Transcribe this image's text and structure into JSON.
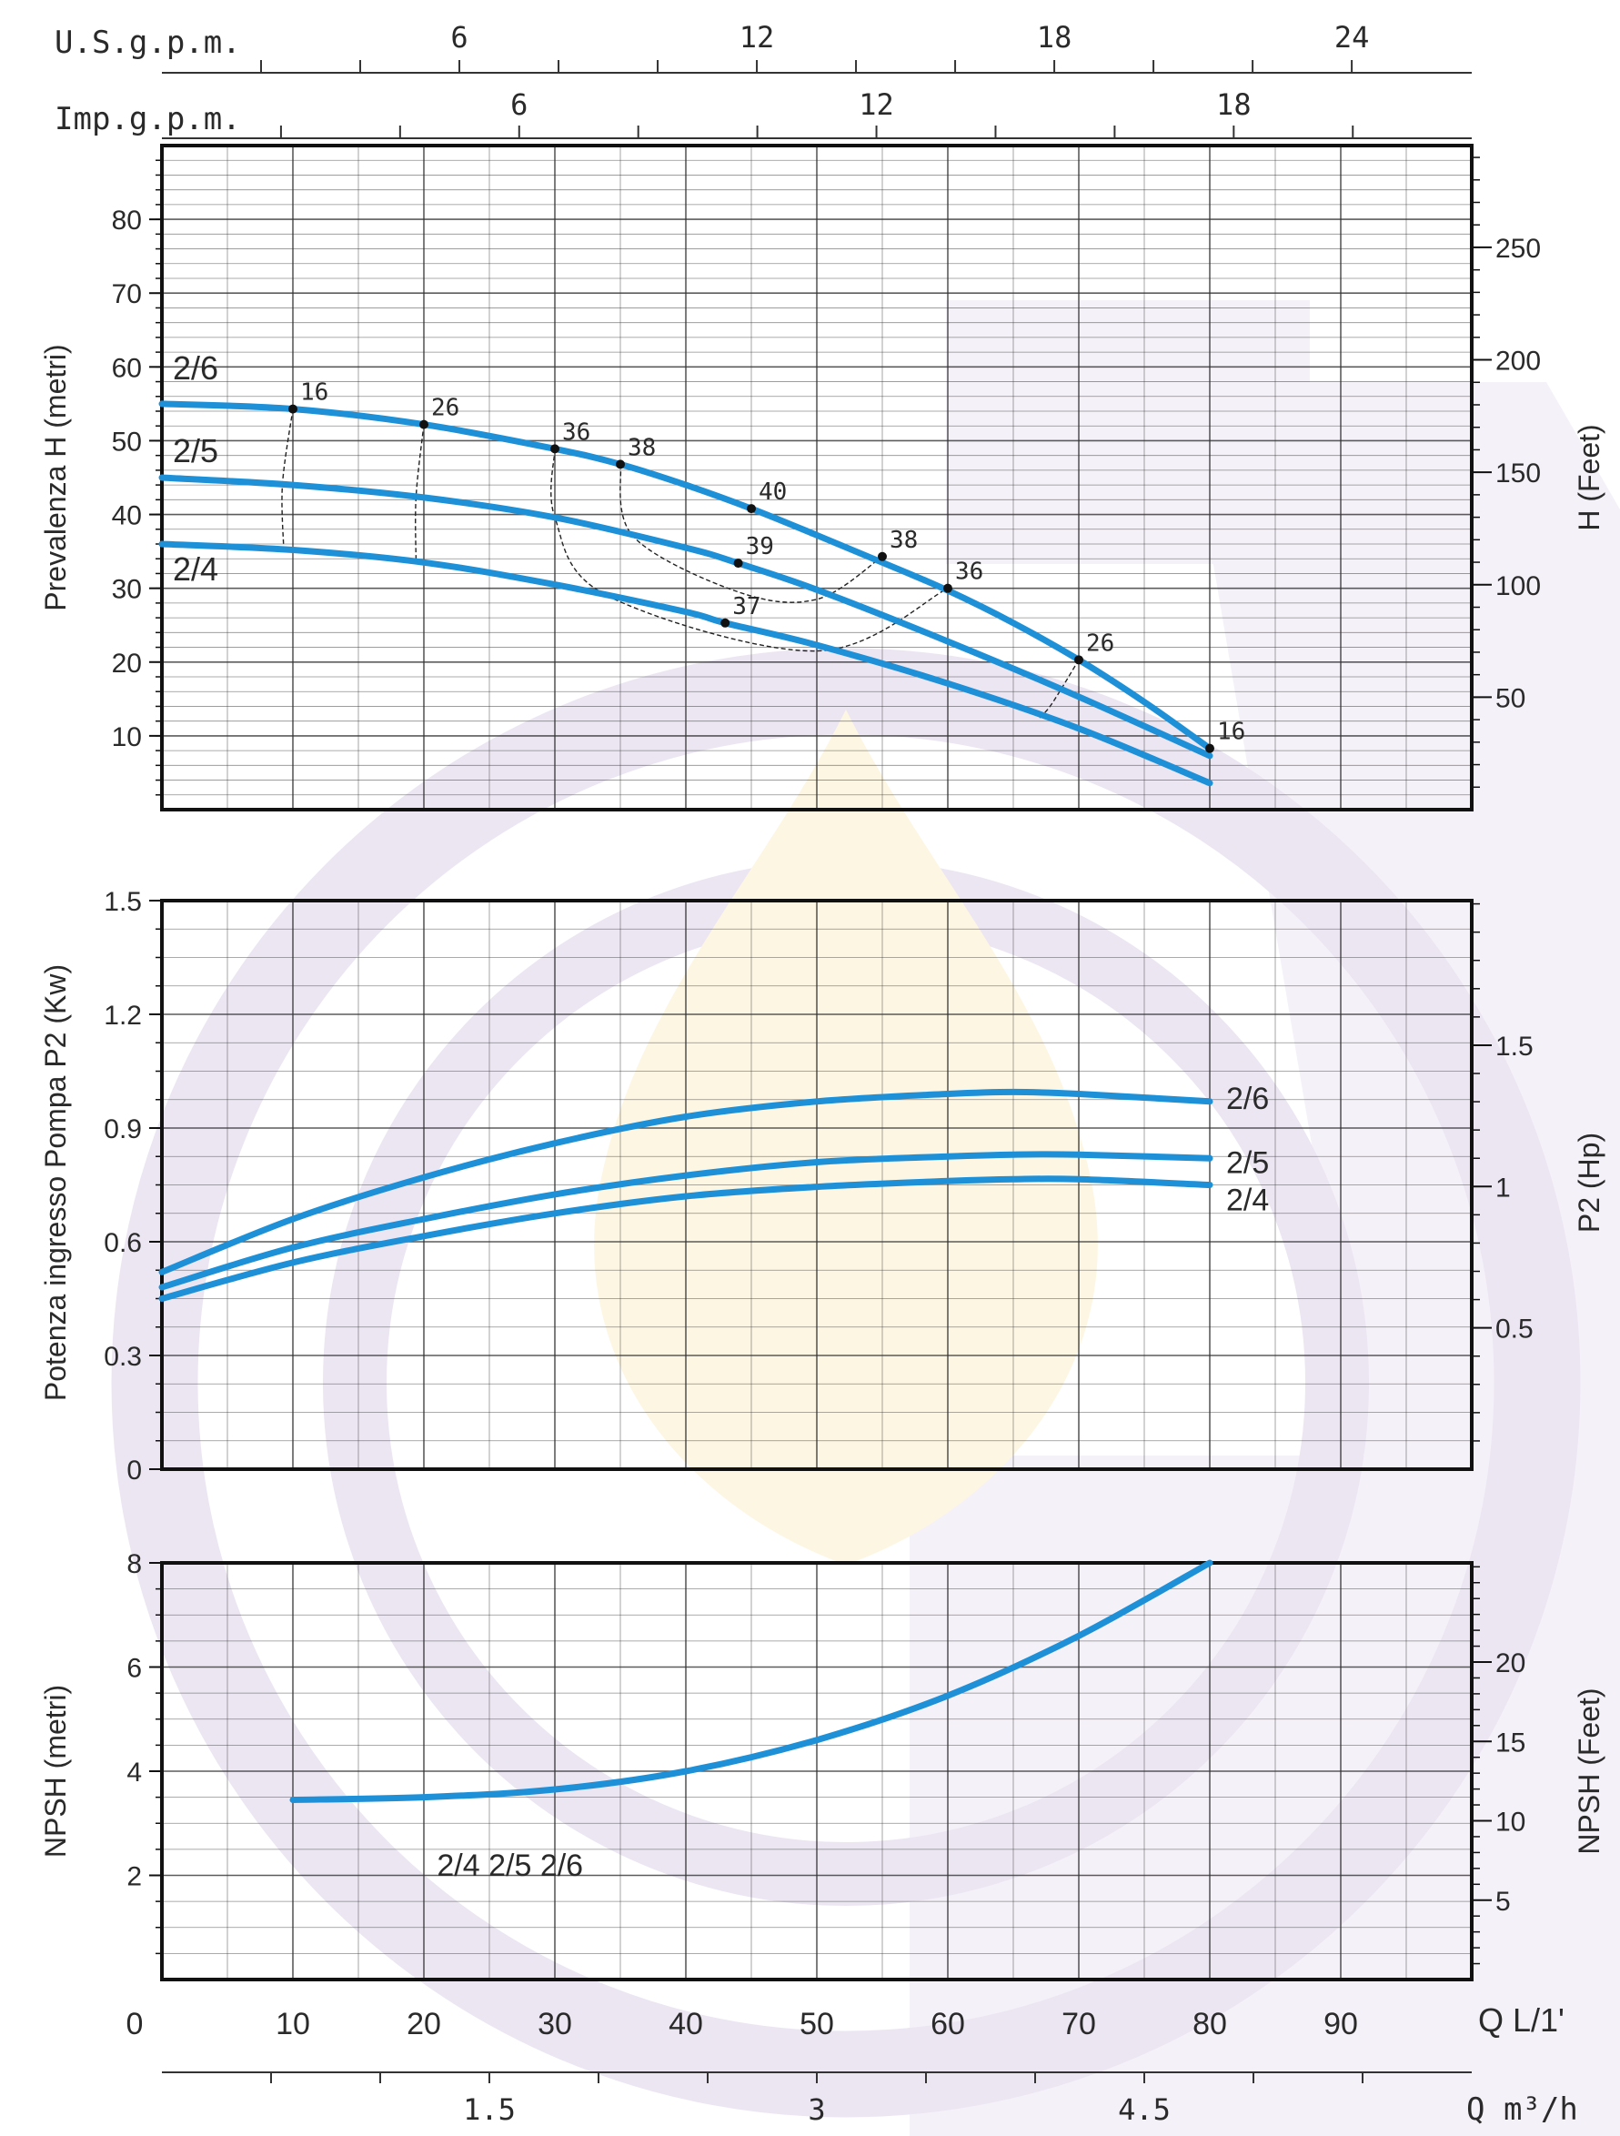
{
  "scales": {
    "usgpm": {
      "label": "U.S.g.p.m.",
      "ticks": [
        "6",
        "12",
        "18",
        "24"
      ]
    },
    "impgpm": {
      "label": "Imp.g.p.m.",
      "ticks": [
        "6",
        "12",
        "18"
      ]
    },
    "q_lmin": {
      "label": "Q  L/1'",
      "ticks": [
        "0",
        "10",
        "20",
        "30",
        "40",
        "50",
        "60",
        "70",
        "80",
        "90"
      ]
    },
    "q_m3h": {
      "label": "Q  m³/h",
      "ticks": [
        "1.5",
        "3",
        "4.5"
      ]
    }
  },
  "colors": {
    "curve": "#1e90d8",
    "grid": "#333333",
    "frame": "#111111",
    "watermark_purple": "#ece6f3",
    "watermark_yellow": "#fdf6e3"
  },
  "chart_data": [
    {
      "type": "line",
      "ylabel": "Prevalenza H (metri)",
      "y2label": "H (Feet)",
      "xlim": [
        0,
        100
      ],
      "ylim": [
        0,
        90
      ],
      "yticks": [
        "10",
        "20",
        "30",
        "40",
        "50",
        "60",
        "70",
        "80"
      ],
      "y2ticks": [
        "50",
        "100",
        "150",
        "200",
        "250"
      ],
      "series": [
        {
          "name": "2/6",
          "x": [
            0,
            10,
            20,
            30,
            35,
            40,
            45,
            50,
            55,
            60,
            65,
            70,
            75,
            80
          ],
          "y": [
            55,
            54.3,
            52.2,
            48.9,
            46.8,
            44,
            40.8,
            37.2,
            33.5,
            29.7,
            25.3,
            20.3,
            14.6,
            8.3
          ]
        },
        {
          "name": "2/5",
          "x": [
            0,
            10,
            20,
            30,
            40,
            44,
            50,
            60,
            70,
            80
          ],
          "y": [
            45,
            44,
            42.3,
            39.6,
            35.5,
            33.4,
            29.8,
            22.8,
            15.3,
            7.3
          ]
        },
        {
          "name": "2/4",
          "x": [
            0,
            10,
            20,
            30,
            40,
            43,
            50,
            60,
            70,
            80
          ],
          "y": [
            36,
            35.2,
            33.5,
            30.5,
            26.8,
            25.3,
            22.3,
            17.1,
            11,
            3.6
          ]
        }
      ],
      "efficiency_points": [
        {
          "label": "16",
          "x": 10,
          "y": 54.3
        },
        {
          "label": "26",
          "x": 20,
          "y": 52.2
        },
        {
          "label": "36",
          "x": 30,
          "y": 48.9
        },
        {
          "label": "38",
          "x": 35,
          "y": 46.8
        },
        {
          "label": "40",
          "x": 45,
          "y": 40.8
        },
        {
          "label": "39",
          "x": 44,
          "y": 33.4
        },
        {
          "label": "37",
          "x": 43,
          "y": 25.3
        },
        {
          "label": "38",
          "x": 55,
          "y": 34.3
        },
        {
          "label": "36",
          "x": 60,
          "y": 30
        },
        {
          "label": "26",
          "x": 70,
          "y": 20.3
        },
        {
          "label": "16",
          "x": 80,
          "y": 8.3
        }
      ]
    },
    {
      "type": "line",
      "ylabel": "Potenza ingresso Pompa P2 (Kw)",
      "y2label": "P2 (Hp)",
      "xlim": [
        0,
        100
      ],
      "ylim": [
        0,
        1.5
      ],
      "yticks": [
        "0",
        "0.3",
        "0.6",
        "0.9",
        "1.2",
        "1.5"
      ],
      "y2ticks": [
        "0.5",
        "1",
        "1.5"
      ],
      "series": [
        {
          "name": "2/6",
          "x": [
            0,
            10,
            20,
            30,
            40,
            50,
            60,
            65,
            70,
            80
          ],
          "y": [
            0.52,
            0.66,
            0.77,
            0.86,
            0.93,
            0.97,
            0.99,
            0.995,
            0.99,
            0.97
          ]
        },
        {
          "name": "2/5",
          "x": [
            0,
            10,
            20,
            30,
            40,
            50,
            60,
            65,
            70,
            80
          ],
          "y": [
            0.48,
            0.585,
            0.66,
            0.725,
            0.775,
            0.81,
            0.825,
            0.83,
            0.83,
            0.82
          ]
        },
        {
          "name": "2/4",
          "x": [
            0,
            10,
            20,
            30,
            40,
            50,
            60,
            65,
            70,
            80
          ],
          "y": [
            0.45,
            0.545,
            0.615,
            0.675,
            0.72,
            0.745,
            0.76,
            0.765,
            0.765,
            0.75
          ]
        }
      ]
    },
    {
      "type": "line",
      "ylabel": "NPSH (metri)",
      "y2label": "NPSH (Feet)",
      "xlim": [
        0,
        100
      ],
      "ylim": [
        0,
        8
      ],
      "yticks": [
        "2",
        "4",
        "6",
        "8"
      ],
      "y2ticks": [
        "5",
        "10",
        "15",
        "20"
      ],
      "series": [
        {
          "name": "2/4  2/5  2/6",
          "x": [
            10,
            20,
            30,
            40,
            50,
            60,
            70,
            80
          ],
          "y": [
            3.45,
            3.5,
            3.65,
            4,
            4.6,
            5.45,
            6.6,
            8
          ]
        }
      ]
    }
  ]
}
